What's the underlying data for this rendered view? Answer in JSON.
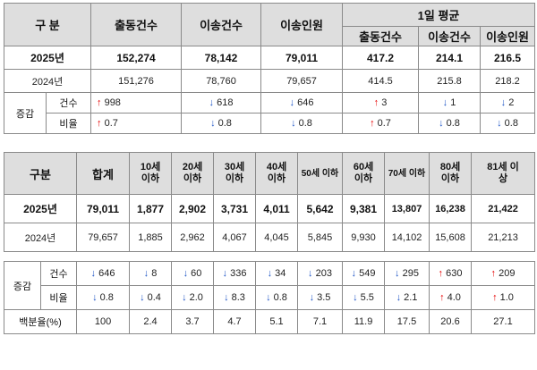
{
  "top_table": {
    "headers": {
      "category": "구 분",
      "dispatch": "출동건수",
      "transport": "이송건수",
      "patients": "이송인원",
      "daily_avg": "1일 평균",
      "sub": [
        "출동건수",
        "이송건수",
        "이송인원"
      ]
    },
    "rows": [
      {
        "label": "2025년",
        "values": [
          "152,274",
          "78,142",
          "79,011",
          "417.2",
          "214.1",
          "216.5"
        ]
      },
      {
        "label": "2024년",
        "values": [
          "151,276",
          "78,760",
          "79,657",
          "414.5",
          "215.8",
          "218.2"
        ]
      }
    ],
    "change": {
      "label": "증감",
      "count": {
        "label": "건수",
        "dirs": [
          "up",
          "down",
          "down",
          "up",
          "down",
          "down"
        ],
        "values": [
          "998",
          "618",
          "646",
          "3",
          "1",
          "2"
        ]
      },
      "rate": {
        "label": "비율",
        "dirs": [
          "up",
          "down",
          "down",
          "up",
          "down",
          "down"
        ],
        "values": [
          "0.7",
          "0.8",
          "0.8",
          "0.7",
          "0.8",
          "0.8"
        ]
      }
    }
  },
  "age_table": {
    "headers": {
      "category": "구분",
      "total": "합계",
      "ages": [
        [
          "10세",
          "이하"
        ],
        [
          "20세",
          "이하"
        ],
        [
          "30세",
          "이하"
        ],
        [
          "40세",
          "이하"
        ],
        [
          "50세 이하"
        ],
        [
          "60세",
          "이하"
        ],
        [
          "70세 이하"
        ],
        [
          "80세",
          "이하"
        ],
        [
          "81세 이",
          "상"
        ]
      ]
    },
    "rows": [
      {
        "label": "2025년",
        "values": [
          "79,011",
          "1,877",
          "2,902",
          "3,731",
          "4,011",
          "5,642",
          "9,381",
          "13,807",
          "16,238",
          "21,422"
        ]
      },
      {
        "label": "2024년",
        "values": [
          "79,657",
          "1,885",
          "2,962",
          "4,067",
          "4,045",
          "5,845",
          "9,930",
          "14,102",
          "15,608",
          "21,213"
        ]
      }
    ],
    "change": {
      "label": "증감",
      "count": {
        "label": "건수",
        "dirs": [
          "down",
          "down",
          "down",
          "down",
          "down",
          "down",
          "down",
          "down",
          "up",
          "up"
        ],
        "values": [
          "646",
          "8",
          "60",
          "336",
          "34",
          "203",
          "549",
          "295",
          "630",
          "209"
        ]
      },
      "rate": {
        "label": "비율",
        "dirs": [
          "down",
          "down",
          "down",
          "down",
          "down",
          "down",
          "down",
          "down",
          "up",
          "up"
        ],
        "values": [
          "0.8",
          "0.4",
          "2.0",
          "8.3",
          "0.8",
          "3.5",
          "5.5",
          "2.1",
          "4.0",
          "1.0"
        ]
      }
    },
    "share": {
      "label": "백분율(%)",
      "values": [
        "100",
        "2.4",
        "3.7",
        "4.7",
        "5.1",
        "7.1",
        "11.9",
        "17.5",
        "20.6",
        "27.1"
      ]
    }
  },
  "arrows": {
    "up": "↑",
    "down": "↓"
  },
  "colors": {
    "up": "#e60000",
    "down": "#1f56c7",
    "header_bg": "#dedede"
  }
}
